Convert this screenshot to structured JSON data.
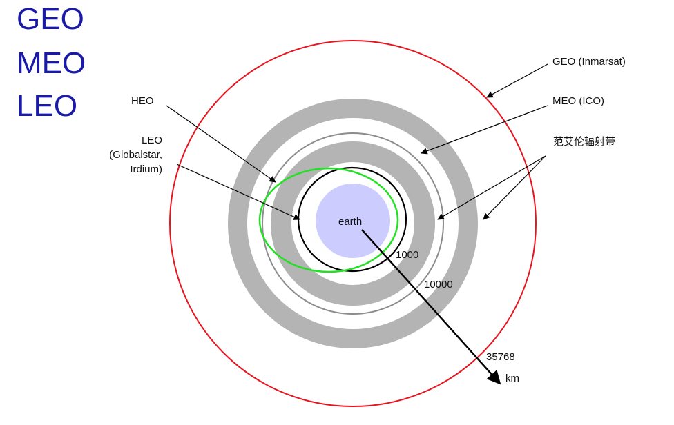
{
  "titles": [
    "GEO",
    "MEO",
    "LEO"
  ],
  "labels": {
    "geo": "GEO (Inmarsat)",
    "meo": "MEO (ICO)",
    "van_allen": "范艾伦辐射带",
    "heo": "HEO",
    "leo_line1": "LEO",
    "leo_line2": "(Globalstar,",
    "leo_line3": "Irdium)",
    "earth": "earth",
    "alt_1000": "1000",
    "alt_10000": "10000",
    "alt_35768": "35768",
    "unit_km": "km"
  },
  "colors": {
    "title_blue": "#1a1aa8",
    "geo_orbit_red": "#e8141e",
    "meo_orbit_grey": "#8c8c8c",
    "radiation_belt_grey": "#b4b4b4",
    "heo_orbit_green": "#22e022",
    "leo_orbit_black": "#000000",
    "earth_fill": "#ccccff"
  }
}
